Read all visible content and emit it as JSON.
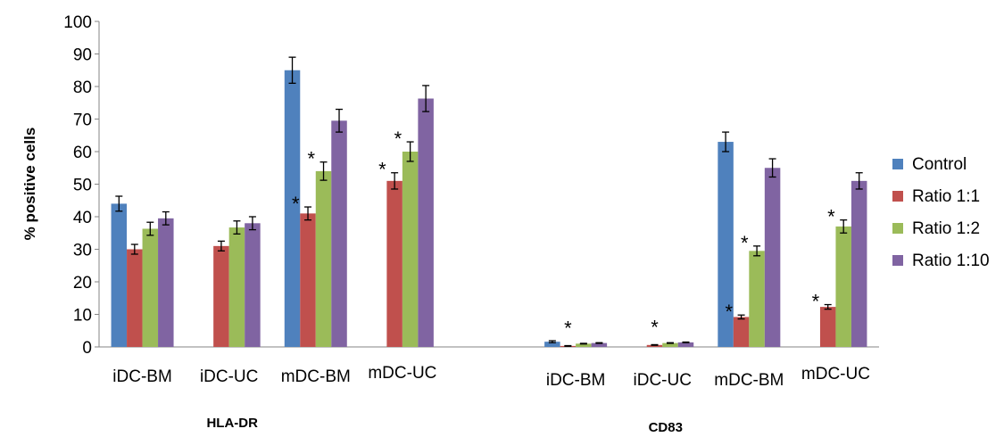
{
  "chart_data": {
    "type": "bar",
    "ylabel": "% positive cells",
    "ylim": [
      0,
      100
    ],
    "yticks": [
      0,
      10,
      20,
      30,
      40,
      50,
      60,
      70,
      80,
      90,
      100
    ],
    "grid": false,
    "legend_position": "right",
    "groups": [
      {
        "label": "HLA-DR",
        "categories": [
          "iDC-BM",
          "iDC-UC",
          "mDC-BM",
          "mDC-UC"
        ]
      },
      {
        "label": "CD83",
        "categories": [
          "iDC-BM",
          "iDC-UC",
          "mDC-BM",
          "mDC-UC"
        ]
      }
    ],
    "categories": [
      "iDC-BM",
      "iDC-UC",
      "mDC-BM",
      "mDC-UC",
      "iDC-BM",
      "iDC-UC",
      "mDC-BM",
      "mDC-UC"
    ],
    "series": [
      {
        "name": "Control",
        "color": "#4F81BD",
        "values": [
          44,
          null,
          85,
          null,
          1.6,
          null,
          63,
          null
        ],
        "errors": [
          2.3,
          null,
          4,
          null,
          0.3,
          null,
          3,
          null
        ],
        "significant": [
          false,
          false,
          false,
          false,
          false,
          false,
          false,
          false
        ]
      },
      {
        "name": "Ratio 1:1",
        "color": "#C0504D",
        "values": [
          30,
          31,
          41,
          51,
          0.3,
          0.6,
          9.2,
          12.3
        ],
        "errors": [
          1.5,
          1.5,
          2,
          2.5,
          0.1,
          0.1,
          0.6,
          0.7
        ],
        "significant": [
          false,
          false,
          true,
          true,
          true,
          true,
          true,
          true
        ]
      },
      {
        "name": "Ratio 1:2",
        "color": "#9BBB59",
        "values": [
          36.3,
          36.7,
          54,
          60,
          1.0,
          1.2,
          29.5,
          37
        ],
        "errors": [
          2,
          2,
          2.8,
          3,
          0.1,
          0.1,
          1.5,
          2
        ],
        "significant": [
          false,
          false,
          true,
          true,
          false,
          false,
          true,
          true
        ]
      },
      {
        "name": "Ratio 1:10",
        "color": "#8064A2",
        "values": [
          39.5,
          38,
          69.5,
          76.3,
          1.2,
          1.4,
          55,
          51
        ],
        "errors": [
          2,
          2,
          3.5,
          4,
          0.1,
          0.1,
          2.8,
          2.5
        ],
        "significant": [
          false,
          false,
          false,
          false,
          false,
          false,
          false,
          false
        ]
      }
    ],
    "annotation_symbol": "*"
  }
}
